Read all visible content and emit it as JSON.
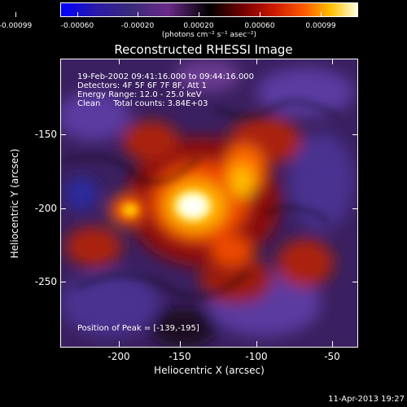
{
  "colorbar": {
    "ticks": [
      "-0.00099",
      "-0.00060",
      "-0.00020",
      "0.00020",
      "0.00060",
      "0.00099"
    ],
    "unit": "(photons cm⁻² s⁻¹ asec⁻²)"
  },
  "title": "Reconstructed RHESSI Image",
  "info": {
    "line1": "19-Feb-2002 09:41:16.000 to 09:44:16.000",
    "line2": "Detectors: 4F 5F 6F 7F 8F, Att 1",
    "line3": "Energy Range: 12.0 - 25.0 keV",
    "line4": "Clean     Total counts: 3.84E+03"
  },
  "peak_label": "Position of Peak = [-139,-195]",
  "axes": {
    "xlabel": "Heliocentric X (arcsec)",
    "ylabel": "Heliocentric Y (arcsec)",
    "xticks": [
      "-200",
      "-150",
      "-100",
      "-50"
    ],
    "yticks": [
      "-150",
      "-200",
      "-250"
    ]
  },
  "timestamp": "11-Apr-2013 19:27",
  "colors": {
    "background": "#000000",
    "foreground": "#ffffff"
  }
}
